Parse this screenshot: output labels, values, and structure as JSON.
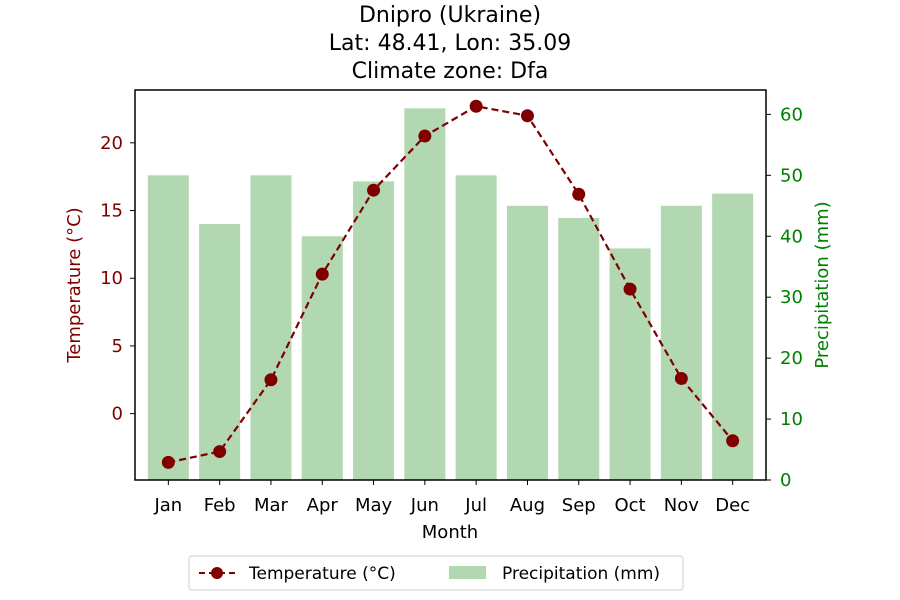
{
  "chart_data": {
    "type": "bar+line",
    "title_lines": [
      "Dnipro (Ukraine)",
      "Lat: 48.41, Lon: 35.09",
      "Climate zone: Dfa"
    ],
    "xlabel": "Month",
    "ylabel_left": "Temperature (°C)",
    "ylabel_right": "Precipitation (mm)",
    "categories": [
      "Jan",
      "Feb",
      "Mar",
      "Apr",
      "May",
      "Jun",
      "Jul",
      "Aug",
      "Sep",
      "Oct",
      "Nov",
      "Dec"
    ],
    "temperature": {
      "name": "Temperature (°C)",
      "values": [
        -3.6,
        -2.8,
        2.5,
        10.3,
        16.5,
        20.5,
        22.7,
        22.0,
        16.2,
        9.2,
        2.6,
        -2.0
      ],
      "color": "#800000"
    },
    "precipitation": {
      "name": "Precipitation (mm)",
      "values": [
        50,
        42,
        50,
        40,
        49,
        61,
        50,
        45,
        43,
        38,
        45,
        47
      ],
      "color": "#b2d8b2"
    },
    "y_left": {
      "min": -4.9,
      "max": 23.9,
      "ticks": [
        0,
        5,
        10,
        15,
        20
      ]
    },
    "y_right": {
      "min": 0,
      "max": 64,
      "ticks": [
        0,
        10,
        20,
        30,
        40,
        50,
        60
      ]
    },
    "left_axis_color": "#800000",
    "right_axis_color": "#008000",
    "legend_position": "bottom-center",
    "grid": false
  }
}
